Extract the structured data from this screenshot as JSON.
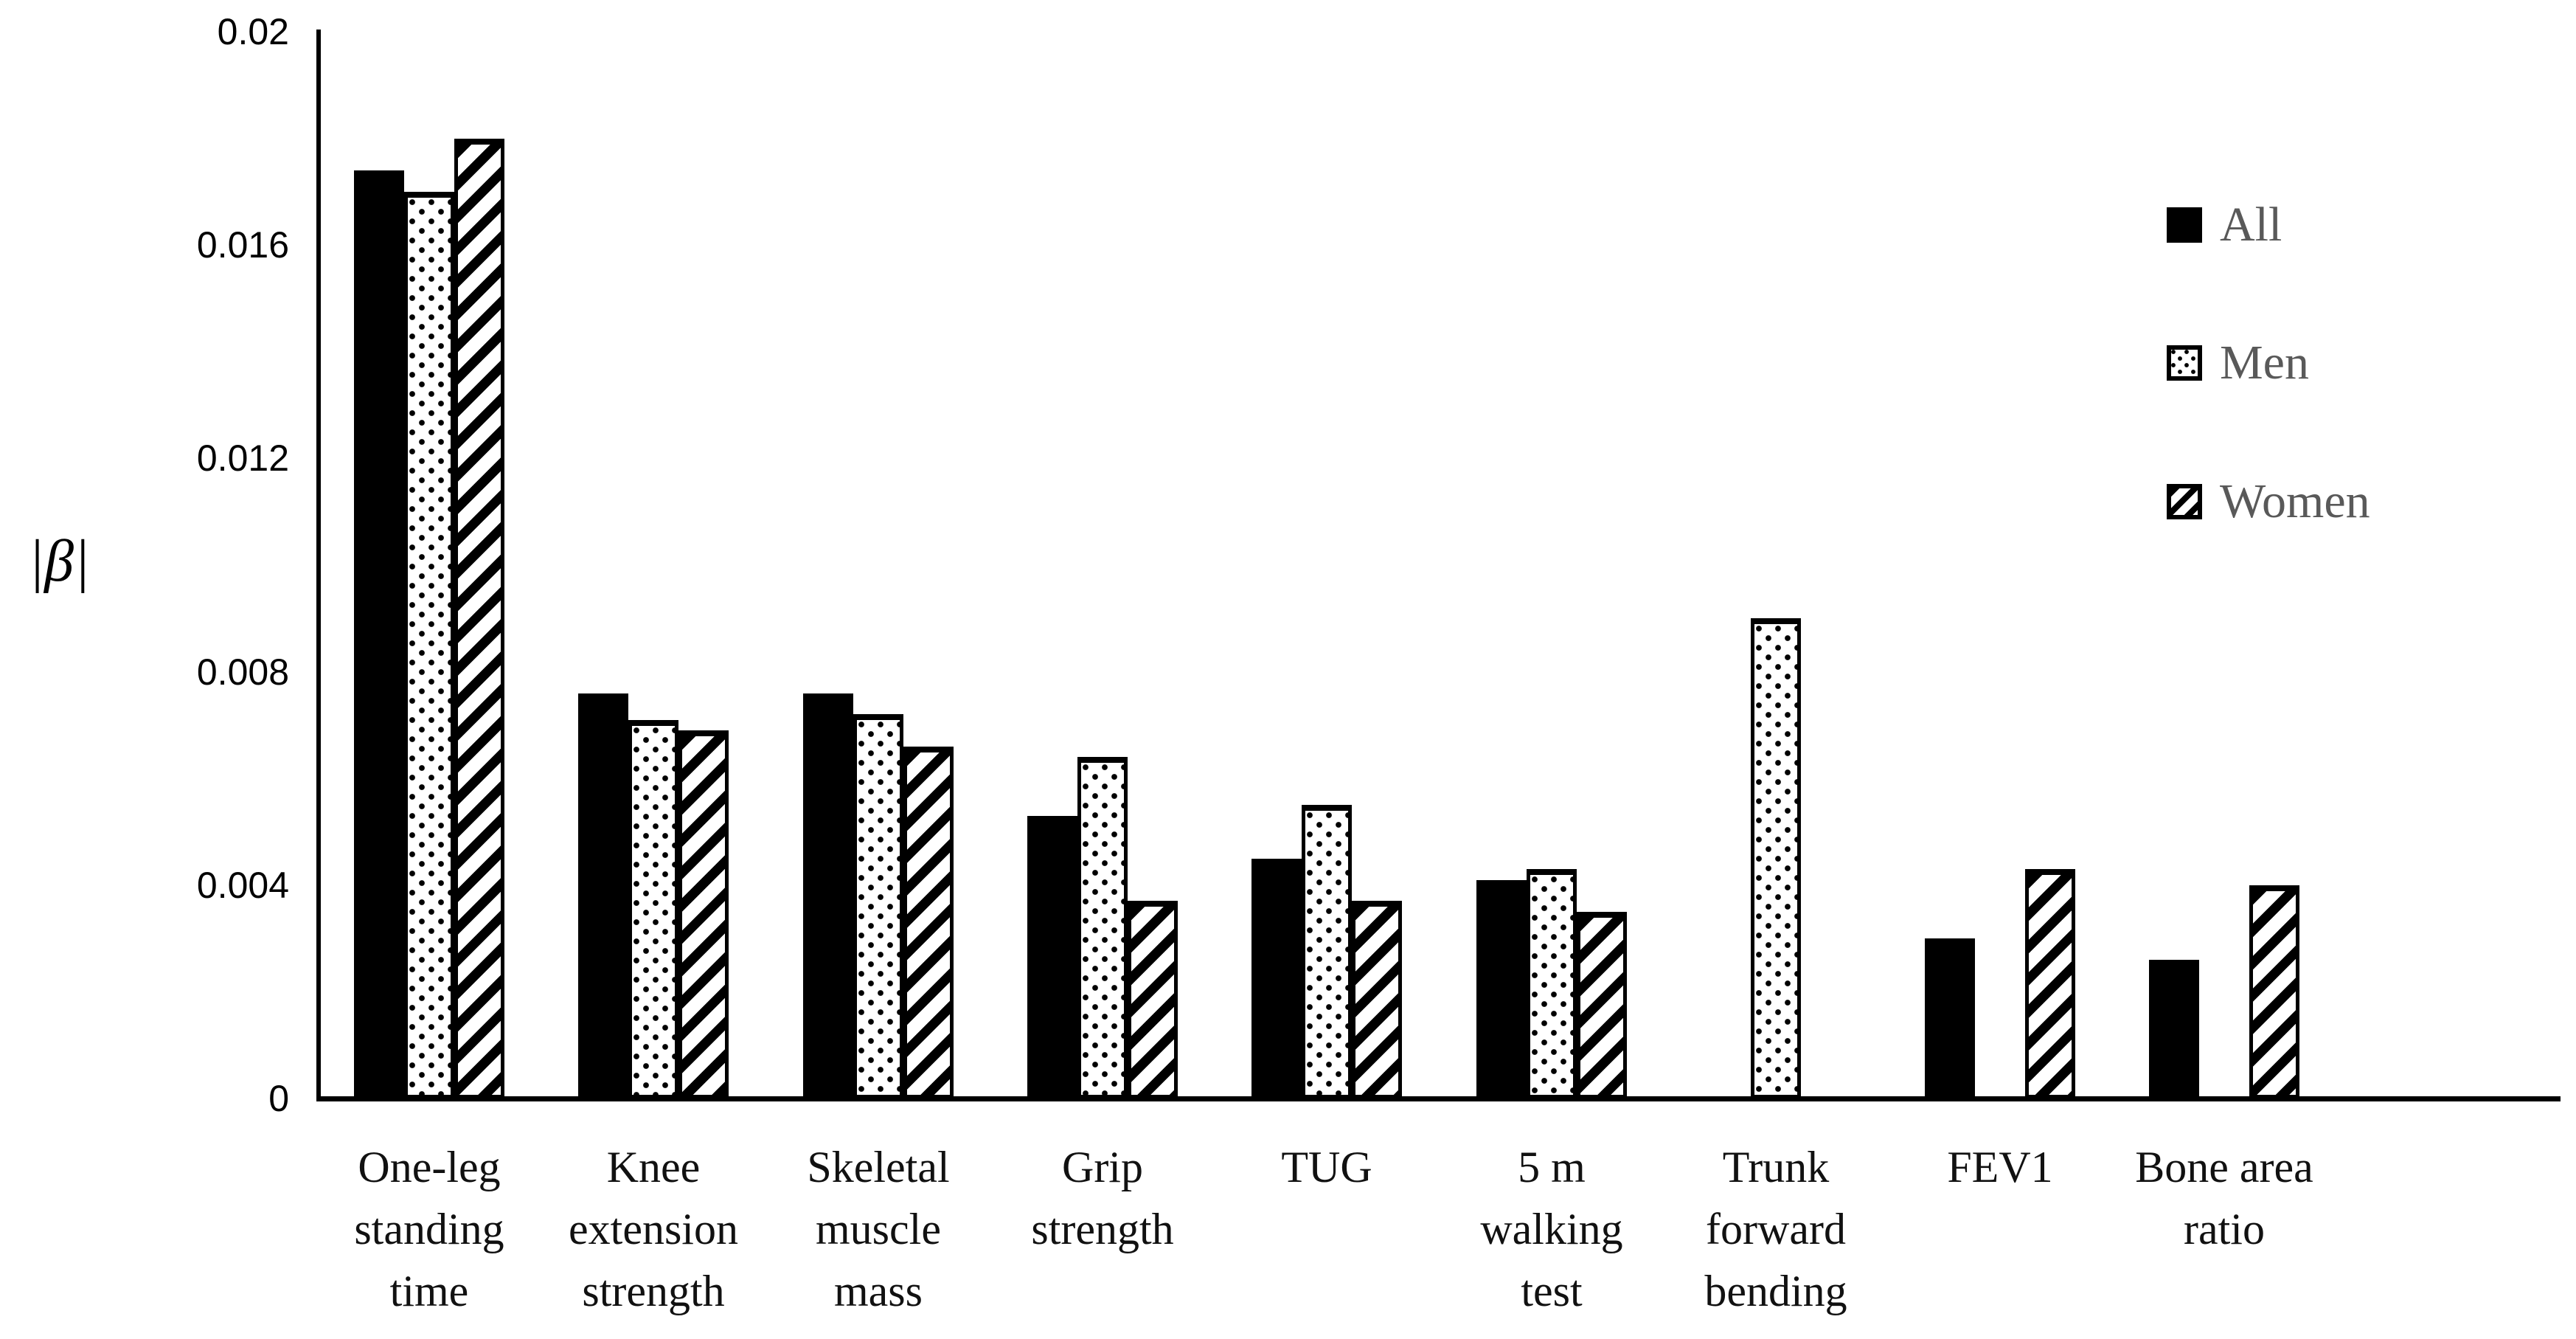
{
  "chart_data": {
    "type": "bar",
    "title": "",
    "xlabel": "",
    "ylabel": "|β|",
    "categories": [
      "One-leg standing time",
      "Knee extension strength",
      "Skeletal muscle mass",
      "Grip strength",
      "TUG",
      "5 m walking test",
      "Trunk forward bending",
      "FEV1",
      "Bone area ratio"
    ],
    "category_label_lines": [
      [
        "One-leg",
        "standing",
        "time"
      ],
      [
        "Knee",
        "extension",
        "strength"
      ],
      [
        "Skeletal",
        "muscle",
        "mass"
      ],
      [
        "Grip",
        "strength"
      ],
      [
        "TUG"
      ],
      [
        "5 m",
        "walking",
        "test"
      ],
      [
        "Trunk",
        "forward",
        "bending"
      ],
      [
        "FEV1"
      ],
      [
        "Bone area",
        "ratio"
      ]
    ],
    "series": [
      {
        "name": "All",
        "pattern": "solid-black",
        "values": [
          0.0174,
          0.0076,
          0.0076,
          0.0053,
          0.0045,
          0.0041,
          null,
          0.003,
          0.0026
        ]
      },
      {
        "name": "Men",
        "pattern": "dotted",
        "values": [
          0.017,
          0.0071,
          0.0072,
          0.0064,
          0.0055,
          0.0043,
          0.009,
          null,
          null
        ]
      },
      {
        "name": "Women",
        "pattern": "diagonal-hatch",
        "values": [
          0.018,
          0.0069,
          0.0066,
          0.0037,
          0.0037,
          0.0035,
          null,
          0.0043,
          0.004
        ]
      }
    ],
    "y_axis": {
      "min": 0,
      "max": 0.02,
      "tick_values": [
        0,
        0.004,
        0.008,
        0.012,
        0.016,
        0.02
      ],
      "tick_labels": [
        "0",
        "0.004",
        "0.008",
        "0.012",
        "0.016",
        "0.02"
      ]
    },
    "legend": {
      "position": "top-right",
      "entries": [
        "All",
        "Men",
        "Women"
      ]
    },
    "grid": false,
    "colors": {
      "bar_fill": "#000000",
      "axis": "#000000",
      "tick_text": "#000000",
      "category_text": "#111111",
      "legend_text": "#595959"
    }
  }
}
